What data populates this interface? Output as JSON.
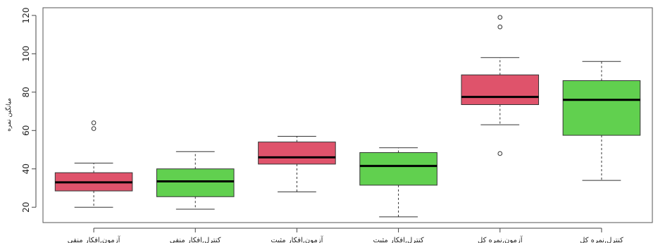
{
  "chart_data": {
    "type": "boxplot",
    "ylabel": "میانگین نمره",
    "ylim": [
      12,
      124
    ],
    "yticks": [
      20,
      40,
      60,
      80,
      100,
      120
    ],
    "categories": [
      "آزمون,افکار منفی",
      "کنترل,افکار منفی",
      "آزمون,افکار مثبت",
      "کنترل,افکار مثبت",
      "آزمون,نمره کل",
      "کنترل,نمره کل"
    ],
    "boxes": [
      {
        "min": 20,
        "q1": 28.5,
        "median": 33,
        "q3": 38,
        "max": 43,
        "outliers": [
          61,
          64
        ],
        "color": "#DF536B"
      },
      {
        "min": 19,
        "q1": 25.5,
        "median": 33.5,
        "q3": 40,
        "max": 49,
        "outliers": [],
        "color": "#61D04F"
      },
      {
        "min": 28,
        "q1": 42.5,
        "median": 46,
        "q3": 54,
        "max": 57,
        "outliers": [],
        "color": "#DF536B"
      },
      {
        "min": 15,
        "q1": 31.5,
        "median": 41.5,
        "q3": 48.5,
        "max": 51,
        "outliers": [],
        "color": "#61D04F"
      },
      {
        "min": 63,
        "q1": 73.5,
        "median": 77.5,
        "q3": 89,
        "max": 98,
        "outliers": [
          48,
          114,
          119
        ],
        "color": "#DF536B"
      },
      {
        "min": 34,
        "q1": 57.5,
        "median": 76,
        "q3": 86,
        "max": 96,
        "outliers": [],
        "color": "#61D04F"
      }
    ]
  }
}
